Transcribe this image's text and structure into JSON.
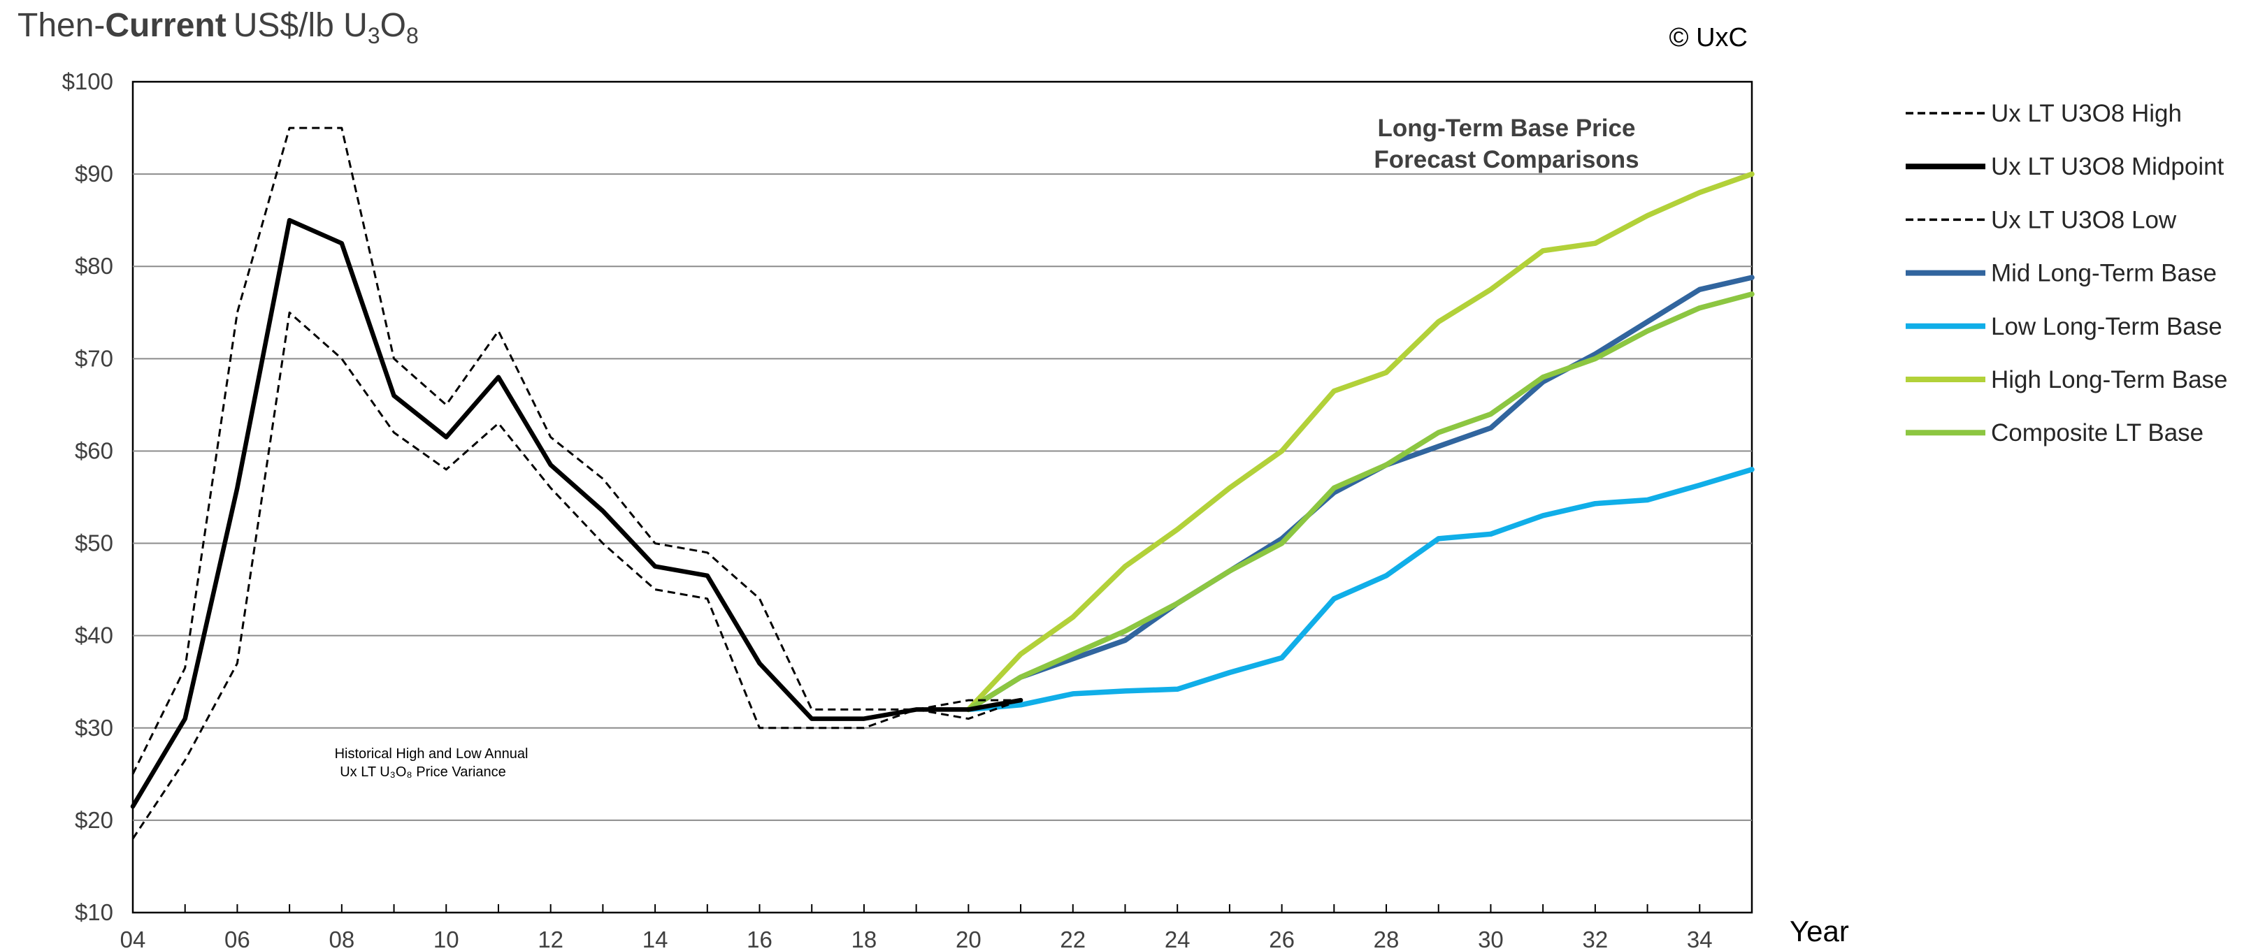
{
  "header": {
    "title_prefix": "Then-",
    "title_bold": "Current",
    "title_unit": "US$/lb U",
    "title_sub1": "3",
    "title_o": "O",
    "title_sub2": "8",
    "copyright": "© UxC"
  },
  "chart_data": {
    "type": "line",
    "title": "Long-Term Base Price",
    "title_line2": "Forecast Comparisons",
    "xlabel": "Year",
    "xlim": [
      4,
      35
    ],
    "ylim": [
      10,
      100
    ],
    "yticks": [
      {
        "value": 10,
        "label": "$10"
      },
      {
        "value": 20,
        "label": "$20"
      },
      {
        "value": 30,
        "label": "$30"
      },
      {
        "value": 40,
        "label": "$40"
      },
      {
        "value": 50,
        "label": "$50"
      },
      {
        "value": 60,
        "label": "$60"
      },
      {
        "value": 70,
        "label": "$70"
      },
      {
        "value": 80,
        "label": "$80"
      },
      {
        "value": 90,
        "label": "$90"
      },
      {
        "value": 100,
        "label": "$100"
      }
    ],
    "xticks": [
      {
        "value": 4,
        "label": "04"
      },
      {
        "value": 6,
        "label": "06"
      },
      {
        "value": 8,
        "label": "08"
      },
      {
        "value": 10,
        "label": "10"
      },
      {
        "value": 12,
        "label": "12"
      },
      {
        "value": 14,
        "label": "14"
      },
      {
        "value": 16,
        "label": "16"
      },
      {
        "value": 18,
        "label": "18"
      },
      {
        "value": 20,
        "label": "20"
      },
      {
        "value": 22,
        "label": "22"
      },
      {
        "value": 24,
        "label": "24"
      },
      {
        "value": 26,
        "label": "26"
      },
      {
        "value": 28,
        "label": "28"
      },
      {
        "value": 30,
        "label": "30"
      },
      {
        "value": 32,
        "label": "32"
      },
      {
        "value": 34,
        "label": "34"
      }
    ],
    "grid": "horizontal",
    "legend_position": "right",
    "annotation_line1": "Historical High and Low Annual",
    "annotation_line2": "Ux LT U₃O₈ Price Variance",
    "series": [
      {
        "name": "Ux LT U3O8 High",
        "color": "#000000",
        "style": "dashed",
        "x": [
          4,
          5,
          6,
          7,
          8,
          9,
          10,
          11,
          12,
          13,
          14,
          15,
          16,
          17,
          18,
          19,
          20,
          21
        ],
        "values": [
          25,
          36.5,
          75,
          95,
          95,
          70,
          65,
          73,
          61.5,
          57,
          50,
          49,
          44,
          32,
          32,
          32,
          33,
          33
        ]
      },
      {
        "name": "Ux LT U3O8 Midpoint",
        "color": "#000000",
        "style": "solid",
        "x": [
          4,
          5,
          6,
          7,
          8,
          9,
          10,
          11,
          12,
          13,
          14,
          15,
          16,
          17,
          18,
          19,
          20,
          21
        ],
        "values": [
          21.5,
          31,
          56,
          85,
          82.5,
          66,
          61.5,
          68,
          58.5,
          53.5,
          47.5,
          46.5,
          37,
          31,
          31,
          32,
          32,
          33
        ]
      },
      {
        "name": "Ux LT U3O8 Low",
        "color": "#000000",
        "style": "dashed",
        "x": [
          4,
          5,
          6,
          7,
          8,
          9,
          10,
          11,
          12,
          13,
          14,
          15,
          16,
          17,
          18,
          19,
          20,
          21
        ],
        "values": [
          18,
          26.5,
          37,
          75,
          70,
          62,
          58,
          63,
          56,
          50,
          45,
          44,
          30,
          30,
          30,
          32,
          31,
          33
        ]
      },
      {
        "name": "Mid Long-Term Base",
        "color": "#31659e",
        "style": "solid",
        "x": [
          20,
          21,
          22,
          23,
          24,
          25,
          26,
          27,
          28,
          29,
          30,
          31,
          32,
          33,
          34,
          35
        ],
        "values": [
          32,
          35.5,
          37.5,
          39.5,
          43.5,
          47,
          50.5,
          55.5,
          58.5,
          60.5,
          62.5,
          67.5,
          70.5,
          74,
          77.5,
          78.8
        ]
      },
      {
        "name": "Low Long-Term Base",
        "color": "#10aee8",
        "style": "solid",
        "x": [
          20,
          21,
          22,
          23,
          24,
          25,
          26,
          27,
          28,
          29,
          30,
          31,
          32,
          33,
          34,
          35
        ],
        "values": [
          32,
          32.5,
          33.7,
          34,
          34.2,
          36,
          37.6,
          44,
          46.5,
          50.5,
          51,
          53,
          54.3,
          54.7,
          56.3,
          58
        ]
      },
      {
        "name": "High Long-Term Base",
        "color": "#b2d139",
        "style": "solid",
        "x": [
          20,
          21,
          22,
          23,
          24,
          25,
          26,
          27,
          28,
          29,
          30,
          31,
          32,
          33,
          34,
          35
        ],
        "values": [
          32,
          38,
          42,
          47.5,
          51.5,
          56,
          60,
          66.5,
          68.5,
          74,
          77.5,
          81.7,
          82.5,
          85.5,
          88,
          90
        ]
      },
      {
        "name": "Composite LT Base",
        "color": "#8cc641",
        "style": "solid",
        "x": [
          20,
          21,
          22,
          23,
          24,
          25,
          26,
          27,
          28,
          29,
          30,
          31,
          32,
          33,
          34,
          35
        ],
        "values": [
          32,
          35.5,
          38,
          40.5,
          43.5,
          47,
          50,
          56,
          58.5,
          62,
          64,
          68,
          70,
          73,
          75.5,
          77
        ]
      }
    ]
  }
}
